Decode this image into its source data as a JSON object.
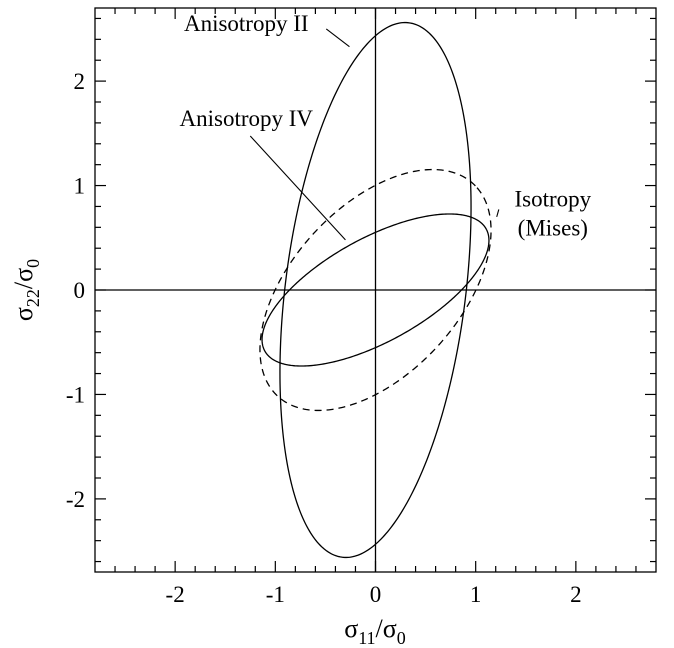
{
  "chart_data": {
    "type": "line",
    "title": "",
    "xlabel": {
      "base": "σ",
      "sub1": "11",
      "sep": "/σ",
      "sub2": "0"
    },
    "ylabel": {
      "base": "σ",
      "sub1": "22",
      "sep": "/σ",
      "sub2": "0"
    },
    "xlim": [
      -2.8,
      2.8
    ],
    "ylim": [
      -2.7,
      2.7
    ],
    "x_ticks": [
      -2,
      -1,
      0,
      1,
      2
    ],
    "y_ticks": [
      -2,
      -1,
      0,
      1,
      2
    ],
    "x_tick_labels": [
      "-2",
      "-1",
      "0",
      "1",
      "2"
    ],
    "y_tick_labels": [
      "-2",
      "-1",
      "0",
      "1",
      "2"
    ],
    "minor_tick_step": 0.2,
    "grid": false,
    "zero_lines": true,
    "series": [
      {
        "label_lines": [
          "Anisotropy II"
        ],
        "style": "solid",
        "center": [
          0,
          0
        ],
        "semi_major": 2.58,
        "semi_minor": 0.9,
        "angle_deg": 82.5,
        "label_anchor": [
          -1.29,
          2.48
        ],
        "leader_to": [
          -0.26,
          2.33
        ]
      },
      {
        "label_lines": [
          "Anisotropy IV"
        ],
        "style": "solid",
        "center": [
          0,
          0
        ],
        "semi_major": 1.25,
        "semi_minor": 0.5,
        "angle_deg": 27.5,
        "label_anchor": [
          -1.29,
          1.57
        ],
        "leader_to": [
          -0.3,
          0.48
        ]
      },
      {
        "label_lines": [
          "Isotropy",
          "(Mises)"
        ],
        "style": "dashed",
        "center": [
          0,
          0
        ],
        "semi_major": 1.41,
        "semi_minor": 0.82,
        "angle_deg": 45,
        "label_anchor": [
          1.77,
          0.8
        ],
        "leader_to": [
          1.21,
          0.7
        ]
      }
    ]
  }
}
